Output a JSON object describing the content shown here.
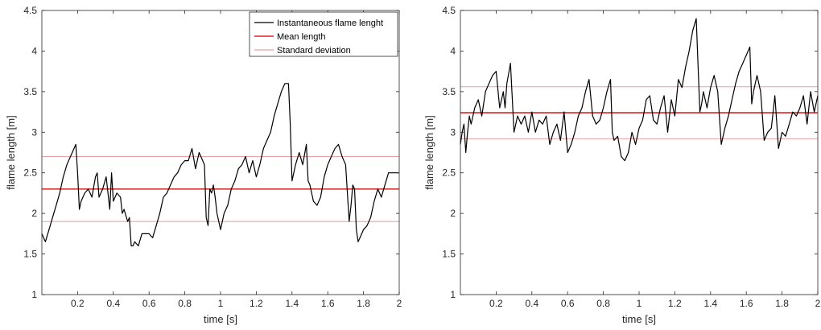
{
  "chart_data": [
    {
      "type": "line",
      "xlabel": "time [s]",
      "ylabel": "flame length [m]",
      "xlim": [
        0,
        2
      ],
      "ylim": [
        1,
        4.5
      ],
      "xticks": [
        "0.2",
        "0.4",
        "0.6",
        "0.8",
        "1",
        "1.2",
        "1.4",
        "1.6",
        "1.8",
        "2"
      ],
      "yticks": [
        "1",
        "1.5",
        "2",
        "2.5",
        "3",
        "3.5",
        "4",
        "4.5"
      ],
      "grid": false,
      "legend_position": "top-right",
      "series": [
        {
          "name": "Instantaneous flame lenght",
          "color": "#000000",
          "x": [
            0.0,
            0.01,
            0.02,
            0.04,
            0.06,
            0.08,
            0.1,
            0.12,
            0.14,
            0.16,
            0.18,
            0.19,
            0.2,
            0.21,
            0.22,
            0.24,
            0.26,
            0.28,
            0.3,
            0.31,
            0.32,
            0.34,
            0.36,
            0.38,
            0.39,
            0.4,
            0.42,
            0.44,
            0.45,
            0.46,
            0.48,
            0.49,
            0.5,
            0.51,
            0.52,
            0.54,
            0.56,
            0.58,
            0.6,
            0.62,
            0.64,
            0.66,
            0.68,
            0.7,
            0.72,
            0.74,
            0.76,
            0.78,
            0.8,
            0.82,
            0.84,
            0.86,
            0.88,
            0.89,
            0.9,
            0.91,
            0.92,
            0.93,
            0.94,
            0.95,
            0.96,
            0.97,
            0.98,
            1.0,
            1.02,
            1.04,
            1.06,
            1.08,
            1.1,
            1.12,
            1.14,
            1.16,
            1.18,
            1.2,
            1.22,
            1.24,
            1.26,
            1.28,
            1.3,
            1.32,
            1.34,
            1.36,
            1.38,
            1.39,
            1.4,
            1.42,
            1.44,
            1.46,
            1.48,
            1.49,
            1.5,
            1.52,
            1.54,
            1.56,
            1.58,
            1.6,
            1.62,
            1.64,
            1.66,
            1.68,
            1.7,
            1.72,
            1.73,
            1.74,
            1.75,
            1.76,
            1.77,
            1.78,
            1.79,
            1.8,
            1.82,
            1.84,
            1.86,
            1.88,
            1.9,
            1.92,
            1.94,
            1.96,
            1.98,
            2.0
          ],
          "y": [
            1.75,
            1.7,
            1.65,
            1.8,
            1.95,
            2.1,
            2.25,
            2.45,
            2.6,
            2.7,
            2.8,
            2.85,
            2.5,
            2.05,
            2.15,
            2.25,
            2.3,
            2.2,
            2.45,
            2.5,
            2.2,
            2.3,
            2.45,
            2.05,
            2.5,
            2.15,
            2.25,
            2.2,
            2.0,
            2.05,
            1.9,
            1.95,
            1.6,
            1.6,
            1.65,
            1.6,
            1.75,
            1.75,
            1.75,
            1.7,
            1.85,
            2.0,
            2.2,
            2.25,
            2.35,
            2.45,
            2.5,
            2.6,
            2.65,
            2.65,
            2.8,
            2.55,
            2.75,
            2.7,
            2.65,
            2.6,
            1.95,
            1.85,
            2.3,
            2.25,
            2.35,
            2.2,
            2.0,
            1.8,
            2.0,
            2.1,
            2.3,
            2.4,
            2.55,
            2.6,
            2.7,
            2.5,
            2.65,
            2.45,
            2.6,
            2.8,
            2.9,
            3.0,
            3.2,
            3.35,
            3.5,
            3.6,
            3.6,
            3.1,
            2.4,
            2.6,
            2.75,
            2.6,
            2.85,
            2.4,
            2.35,
            2.15,
            2.1,
            2.2,
            2.45,
            2.6,
            2.7,
            2.8,
            2.85,
            2.7,
            2.6,
            1.9,
            2.1,
            2.35,
            2.3,
            1.8,
            1.65,
            1.7,
            1.75,
            1.8,
            1.85,
            1.95,
            2.15,
            2.3,
            2.2,
            2.35,
            2.5,
            2.5,
            2.5,
            2.5
          ]
        },
        {
          "name": "Mean length",
          "color": "#d62728",
          "value": 2.3
        },
        {
          "name": "Standard deviation",
          "color": "#e8a0a0",
          "values": [
            2.7,
            1.9
          ]
        }
      ]
    },
    {
      "type": "line",
      "xlabel": "time [s]",
      "ylabel": "flame length [m]",
      "xlim": [
        0,
        2
      ],
      "ylim": [
        1,
        4.5
      ],
      "xticks": [
        "0.2",
        "0.4",
        "0.6",
        "0.8",
        "1",
        "1.2",
        "1.4",
        "1.6",
        "1.8",
        "2"
      ],
      "yticks": [
        "1",
        "1.5",
        "2",
        "2.5",
        "3",
        "3.5",
        "4",
        "4.5"
      ],
      "grid": false,
      "series": [
        {
          "color": "#000000",
          "x": [
            0.0,
            0.01,
            0.02,
            0.03,
            0.04,
            0.05,
            0.06,
            0.08,
            0.1,
            0.12,
            0.14,
            0.16,
            0.18,
            0.2,
            0.22,
            0.24,
            0.25,
            0.26,
            0.28,
            0.3,
            0.31,
            0.32,
            0.34,
            0.36,
            0.38,
            0.4,
            0.42,
            0.44,
            0.46,
            0.48,
            0.5,
            0.52,
            0.54,
            0.56,
            0.58,
            0.6,
            0.62,
            0.64,
            0.66,
            0.68,
            0.7,
            0.72,
            0.74,
            0.76,
            0.78,
            0.8,
            0.82,
            0.84,
            0.85,
            0.86,
            0.88,
            0.9,
            0.92,
            0.94,
            0.96,
            0.98,
            1.0,
            1.02,
            1.04,
            1.06,
            1.08,
            1.1,
            1.12,
            1.14,
            1.16,
            1.18,
            1.2,
            1.22,
            1.24,
            1.26,
            1.28,
            1.3,
            1.32,
            1.34,
            1.35,
            1.36,
            1.38,
            1.4,
            1.42,
            1.44,
            1.46,
            1.48,
            1.5,
            1.52,
            1.54,
            1.56,
            1.58,
            1.6,
            1.62,
            1.63,
            1.64,
            1.66,
            1.68,
            1.7,
            1.72,
            1.74,
            1.76,
            1.78,
            1.8,
            1.82,
            1.84,
            1.86,
            1.88,
            1.9,
            1.92,
            1.94,
            1.96,
            1.98,
            2.0
          ],
          "y": [
            2.85,
            3.0,
            3.1,
            2.75,
            3.0,
            3.2,
            3.1,
            3.3,
            3.4,
            3.2,
            3.5,
            3.6,
            3.7,
            3.75,
            3.3,
            3.5,
            3.3,
            3.6,
            3.85,
            3.0,
            3.1,
            3.2,
            3.1,
            3.2,
            3.0,
            3.25,
            3.0,
            3.15,
            3.1,
            3.2,
            2.85,
            3.0,
            3.1,
            2.9,
            3.25,
            2.75,
            2.85,
            3.0,
            3.2,
            3.3,
            3.5,
            3.65,
            3.2,
            3.1,
            3.15,
            3.3,
            3.5,
            3.65,
            3.0,
            2.9,
            2.95,
            2.7,
            2.65,
            2.75,
            3.0,
            2.85,
            3.05,
            3.15,
            3.4,
            3.45,
            3.15,
            3.1,
            3.3,
            3.45,
            3.0,
            3.4,
            3.2,
            3.65,
            3.55,
            3.8,
            4.0,
            4.25,
            4.4,
            3.25,
            3.35,
            3.5,
            3.3,
            3.55,
            3.7,
            3.5,
            2.85,
            3.05,
            3.2,
            3.4,
            3.6,
            3.75,
            3.85,
            3.95,
            4.05,
            3.35,
            3.5,
            3.7,
            3.5,
            2.9,
            3.0,
            3.05,
            3.45,
            2.8,
            3.0,
            2.95,
            3.1,
            3.25,
            3.2,
            3.3,
            3.45,
            3.1,
            3.5,
            3.25,
            3.45
          ]
        },
        {
          "color": "#d62728",
          "value": 3.24
        },
        {
          "color": "#e8a0a0",
          "values": [
            3.56,
            2.92
          ]
        }
      ]
    }
  ]
}
